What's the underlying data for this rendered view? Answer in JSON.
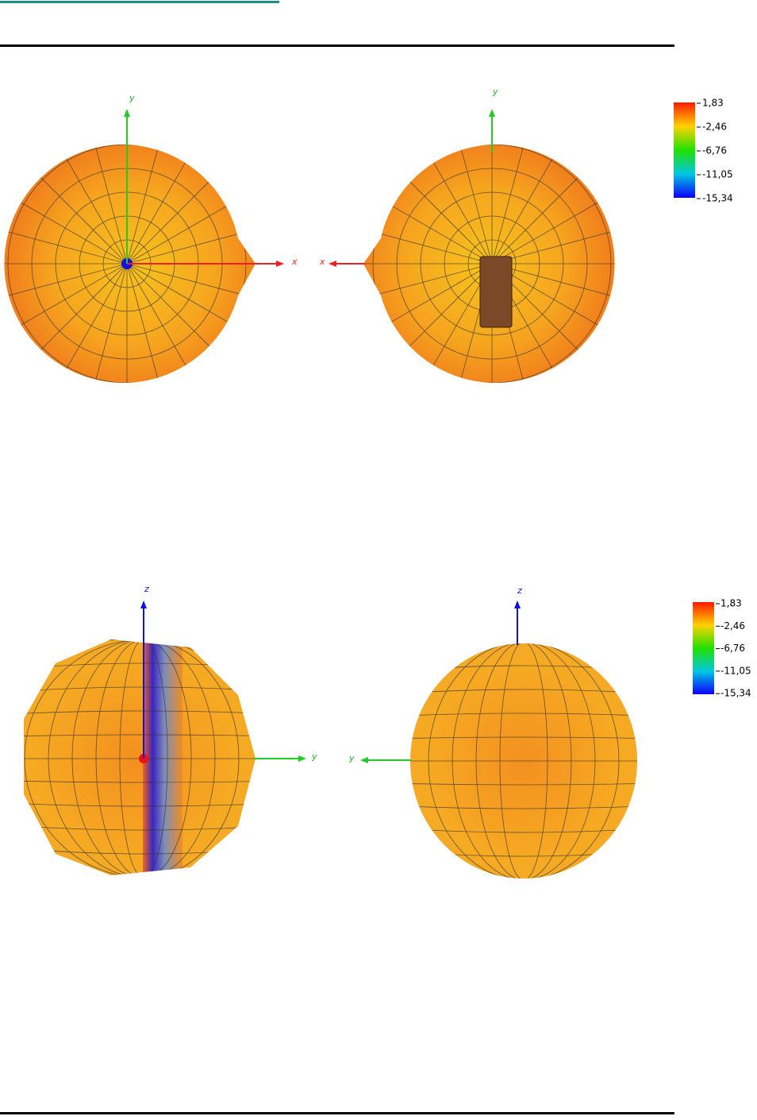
{
  "views": [
    {
      "vertical_axis": "y",
      "horizontal_axis": "x"
    },
    {
      "vertical_axis": "y",
      "horizontal_axis": "x"
    },
    {
      "vertical_axis": "z",
      "horizontal_axis": "y"
    },
    {
      "vertical_axis": "z",
      "horizontal_axis": "y"
    }
  ],
  "colorbars": [
    {
      "ticks": [
        "1,83",
        "-2,46",
        "-6,76",
        "-11,05",
        "-15,34"
      ]
    },
    {
      "ticks": [
        "1,83",
        "-2,46",
        "-6,76",
        "-11,05",
        "-15,34"
      ]
    }
  ]
}
